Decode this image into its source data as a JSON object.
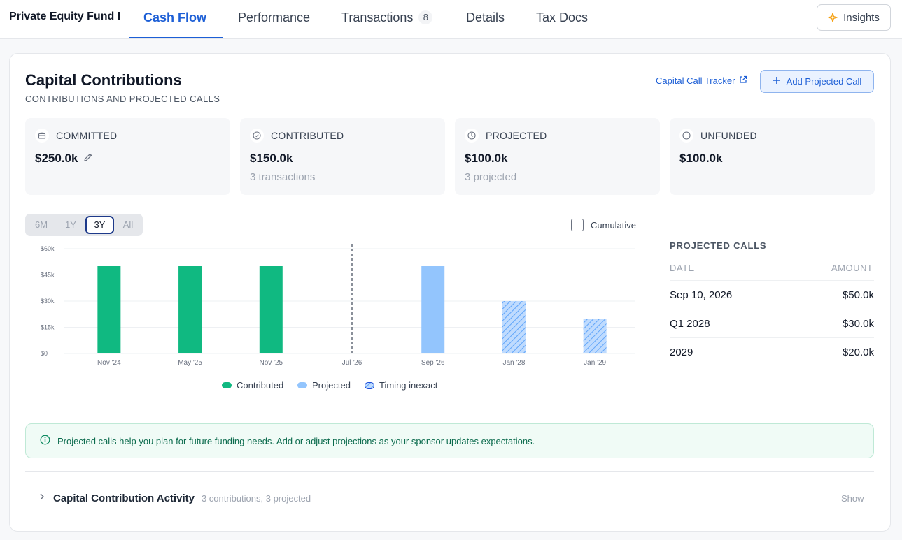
{
  "header": {
    "fund_name": "Private Equity Fund I",
    "tabs": [
      {
        "label": "Cash Flow"
      },
      {
        "label": "Performance"
      },
      {
        "label": "Transactions",
        "count": "8"
      },
      {
        "label": "Details"
      },
      {
        "label": "Tax Docs"
      }
    ],
    "active_tab": "Cash Flow",
    "insights_label": "Insights"
  },
  "section": {
    "title": "Capital Contributions",
    "subtitle": "CONTRIBUTIONS AND PROJECTED CALLS",
    "tracker_link": "Capital Call Tracker",
    "add_button": "Add Projected Call"
  },
  "stats": [
    {
      "label": "COMMITTED",
      "value": "$250.0k",
      "sub": "",
      "icon": "briefcase-icon"
    },
    {
      "label": "CONTRIBUTED",
      "value": "$150.0k",
      "sub": "3 transactions",
      "icon": "check-circle-icon"
    },
    {
      "label": "PROJECTED",
      "value": "$100.0k",
      "sub": "3 projected",
      "icon": "clock-icon"
    },
    {
      "label": "UNFUNDED",
      "value": "$100.0k",
      "sub": "",
      "icon": "circle-icon"
    }
  ],
  "range": {
    "options": [
      "6M",
      "1Y",
      "3Y",
      "All"
    ],
    "selected": "3Y"
  },
  "cumulative_label": "Cumulative",
  "chart_data": {
    "type": "bar",
    "y_ticks": [
      "$0",
      "$15k",
      "$30k",
      "$45k",
      "$60k"
    ],
    "ylim": [
      0,
      60000
    ],
    "x_ticks": [
      "Nov '24",
      "May '25",
      "Nov '25",
      "Jul '26",
      "Sep '26",
      "Jan '28",
      "Jan '29"
    ],
    "today_marker": "Jul '26",
    "grid": true,
    "legend_position": "bottom",
    "series": [
      {
        "name": "Contributed",
        "color": "#10b981",
        "points": [
          {
            "x": "Nov '24",
            "y": 50000
          },
          {
            "x": "May '25",
            "y": 50000
          },
          {
            "x": "Nov '25",
            "y": 50000
          }
        ]
      },
      {
        "name": "Projected",
        "color": "#93c5fd",
        "points": [
          {
            "x": "Sep '26",
            "y": 50000
          }
        ]
      },
      {
        "name": "Timing inexact",
        "color": "#93c5fd",
        "pattern": "hatched",
        "points": [
          {
            "x": "Jan '28",
            "y": 30000
          },
          {
            "x": "Jan '29",
            "y": 20000
          }
        ]
      }
    ]
  },
  "projected_calls": {
    "title": "PROJECTED CALLS",
    "col_date": "DATE",
    "col_amount": "AMOUNT",
    "rows": [
      {
        "date": "Sep 10, 2026",
        "amount": "$50.0k"
      },
      {
        "date": "Q1 2028",
        "amount": "$30.0k"
      },
      {
        "date": "2029",
        "amount": "$20.0k"
      }
    ]
  },
  "info_text": "Projected calls help you plan for future funding needs. Add or adjust projections as your sponsor updates expectations.",
  "activity": {
    "title": "Capital Contribution Activity",
    "summary": "3 contributions, 3 projected",
    "toggle_label": "Show"
  },
  "colors": {
    "accent": "#1d5fd6",
    "contributed": "#10b981",
    "projected": "#93c5fd",
    "info_text": "#0b6b4d"
  }
}
